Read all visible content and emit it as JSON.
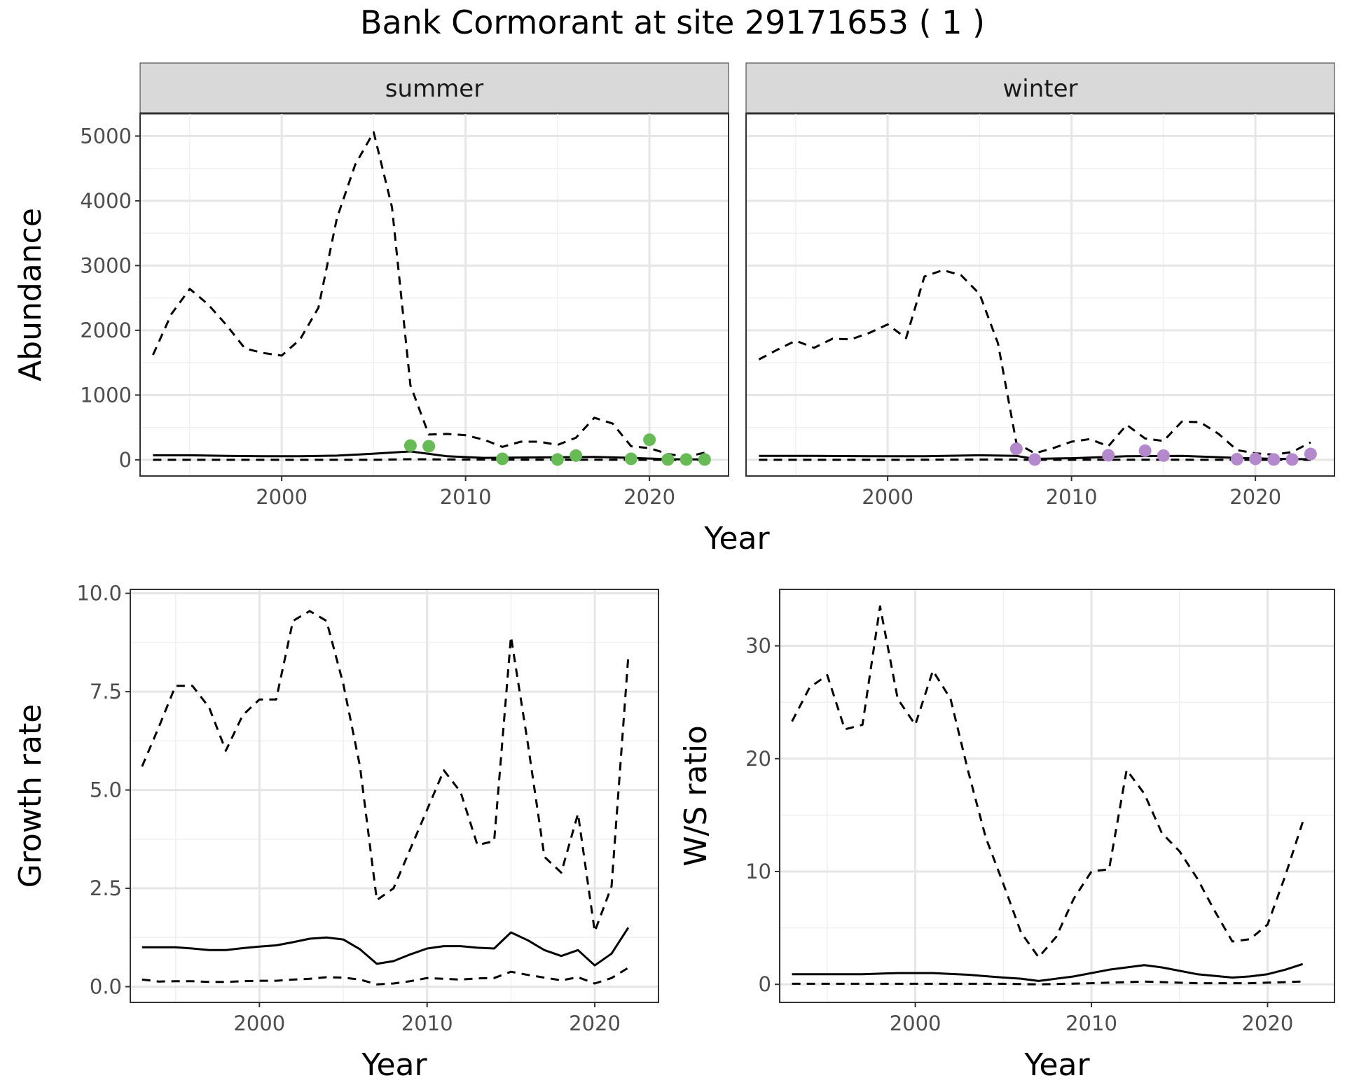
{
  "figure": {
    "title": "Bank Cormorant at site 29171653 ( 1 )"
  },
  "chart_data": [
    {
      "id": "abundance",
      "type": "line",
      "facets": [
        "summer",
        "winter"
      ],
      "xlabel": "Year",
      "ylabel": "Abundance",
      "xlim": [
        1992.3,
        2024.3
      ],
      "ylim": [
        -250,
        5350
      ],
      "xticks": [
        2000,
        2010,
        2020
      ],
      "yticks": [
        0,
        1000,
        2000,
        3000,
        4000,
        5000
      ],
      "grid": true,
      "colors": {
        "summer": "#66BB55",
        "winter": "#B388CC",
        "line": "#000000"
      },
      "panels": [
        {
          "facet": "summer",
          "series": [
            {
              "role": "estimate",
              "style": "solid",
              "x": [
                1993,
                1995,
                1997,
                1999,
                2001,
                2003,
                2005,
                2007,
                2009,
                2011,
                2013,
                2015,
                2017,
                2019,
                2021,
                2023
              ],
              "y": [
                70,
                70,
                60,
                55,
                55,
                65,
                95,
                130,
                55,
                30,
                35,
                40,
                45,
                30,
                10,
                5
              ]
            },
            {
              "role": "upper",
              "style": "dashed",
              "x": [
                1993,
                1994,
                1995,
                1996,
                1997,
                1998,
                1999,
                2000,
                2001,
                2002,
                2003,
                2004,
                2005,
                2006,
                2007,
                2008,
                2009,
                2010,
                2011,
                2012,
                2013,
                2014,
                2015,
                2016,
                2017,
                2018,
                2019,
                2020,
                2021,
                2022,
                2023
              ],
              "y": [
                1620,
                2250,
                2640,
                2400,
                2080,
                1720,
                1650,
                1610,
                1860,
                2350,
                3730,
                4560,
                5060,
                3900,
                1150,
                390,
                400,
                380,
                310,
                200,
                280,
                280,
                230,
                340,
                650,
                560,
                210,
                180,
                90,
                45,
                110
              ]
            },
            {
              "role": "lower",
              "style": "dashed",
              "x": [
                1993,
                1997,
                2001,
                2005,
                2007,
                2009,
                2013,
                2017,
                2021,
                2023
              ],
              "y": [
                0,
                0,
                0,
                0,
                10,
                5,
                2,
                2,
                0,
                0
              ]
            }
          ],
          "points": {
            "x": [
              2007,
              2008,
              2012,
              2015,
              2016,
              2019,
              2020,
              2021,
              2022,
              2023
            ],
            "y": [
              220,
              210,
              15,
              5,
              65,
              15,
              310,
              5,
              5,
              5
            ]
          }
        },
        {
          "facet": "winter",
          "series": [
            {
              "role": "estimate",
              "style": "solid",
              "x": [
                1993,
                1996,
                1999,
                2002,
                2005,
                2007,
                2008,
                2010,
                2013,
                2016,
                2019,
                2021,
                2023
              ],
              "y": [
                60,
                60,
                55,
                55,
                70,
                60,
                15,
                25,
                55,
                60,
                30,
                15,
                10
              ]
            },
            {
              "role": "upper",
              "style": "dashed",
              "x": [
                1993,
                1994,
                1995,
                1996,
                1997,
                1998,
                1999,
                2000,
                2001,
                2002,
                2003,
                2004,
                2005,
                2006,
                2007,
                2008,
                2009,
                2010,
                2011,
                2012,
                2013,
                2014,
                2015,
                2016,
                2017,
                2018,
                2019,
                2020,
                2021,
                2022,
                2023
              ],
              "y": [
                1550,
                1700,
                1840,
                1730,
                1870,
                1860,
                1960,
                2090,
                1880,
                2830,
                2930,
                2850,
                2560,
                1800,
                260,
                100,
                180,
                280,
                320,
                210,
                540,
                330,
                290,
                590,
                580,
                400,
                150,
                100,
                80,
                120,
                270
              ]
            },
            {
              "role": "lower",
              "style": "dashed",
              "x": [
                1993,
                2000,
                2006,
                2008,
                2013,
                2019,
                2023
              ],
              "y": [
                0,
                0,
                5,
                0,
                2,
                0,
                0
              ]
            }
          ],
          "points": {
            "x": [
              2007,
              2008,
              2012,
              2014,
              2015,
              2019,
              2020,
              2021,
              2022,
              2023
            ],
            "y": [
              170,
              5,
              70,
              140,
              65,
              10,
              15,
              5,
              5,
              90
            ]
          }
        }
      ]
    },
    {
      "id": "growth",
      "type": "line",
      "xlabel": "Year",
      "ylabel": "Growth rate",
      "xlim": [
        1992.3,
        2023.8
      ],
      "ylim": [
        -0.4,
        10.1
      ],
      "xticks": [
        2000,
        2010,
        2020
      ],
      "yticks": [
        0.0,
        2.5,
        5.0,
        7.5,
        10.0
      ],
      "ytick_labels": [
        "0.0",
        "2.5",
        "5.0",
        "7.5",
        "10.0"
      ],
      "grid": true,
      "series": [
        {
          "role": "estimate",
          "style": "solid",
          "x": [
            1993,
            1994,
            1995,
            1996,
            1997,
            1998,
            1999,
            2000,
            2001,
            2002,
            2003,
            2004,
            2005,
            2006,
            2007,
            2008,
            2009,
            2010,
            2011,
            2012,
            2013,
            2014,
            2015,
            2016,
            2017,
            2018,
            2019,
            2020,
            2021,
            2022
          ],
          "y": [
            1.0,
            1.0,
            1.0,
            0.97,
            0.93,
            0.93,
            0.98,
            1.02,
            1.05,
            1.13,
            1.22,
            1.25,
            1.2,
            0.95,
            0.58,
            0.65,
            0.82,
            0.97,
            1.03,
            1.03,
            0.99,
            0.97,
            1.38,
            1.18,
            0.93,
            0.78,
            0.93,
            0.54,
            0.84,
            1.5
          ]
        },
        {
          "role": "upper",
          "style": "dashed",
          "x": [
            1993,
            1994,
            1995,
            1996,
            1997,
            1998,
            1999,
            2000,
            2001,
            2002,
            2003,
            2004,
            2005,
            2006,
            2007,
            2008,
            2009,
            2010,
            2011,
            2012,
            2013,
            2014,
            2015,
            2016,
            2017,
            2018,
            2019,
            2020,
            2021,
            2022
          ],
          "y": [
            5.6,
            6.6,
            7.65,
            7.65,
            7.1,
            6.0,
            6.9,
            7.3,
            7.3,
            9.3,
            9.55,
            9.3,
            7.7,
            5.6,
            2.2,
            2.5,
            3.5,
            4.5,
            5.5,
            4.95,
            3.6,
            3.7,
            8.9,
            6.2,
            3.3,
            2.9,
            4.4,
            1.4,
            2.55,
            8.4
          ]
        },
        {
          "role": "lower",
          "style": "dashed",
          "x": [
            1993,
            1994,
            1995,
            1996,
            1997,
            1998,
            1999,
            2000,
            2001,
            2002,
            2003,
            2004,
            2005,
            2006,
            2007,
            2008,
            2009,
            2010,
            2011,
            2012,
            2013,
            2014,
            2015,
            2016,
            2017,
            2018,
            2019,
            2020,
            2021,
            2022
          ],
          "y": [
            0.18,
            0.13,
            0.14,
            0.14,
            0.12,
            0.12,
            0.14,
            0.15,
            0.15,
            0.18,
            0.2,
            0.24,
            0.23,
            0.18,
            0.06,
            0.08,
            0.14,
            0.22,
            0.2,
            0.18,
            0.21,
            0.22,
            0.38,
            0.3,
            0.23,
            0.16,
            0.24,
            0.08,
            0.22,
            0.48
          ]
        }
      ]
    },
    {
      "id": "ws_ratio",
      "type": "line",
      "xlabel": "Year",
      "ylabel": "W/S ratio",
      "xlim": [
        1992.3,
        2023.8
      ],
      "ylim": [
        -1.6,
        35.0
      ],
      "xticks": [
        2000,
        2010,
        2020
      ],
      "yticks": [
        0,
        10,
        20,
        30
      ],
      "grid": true,
      "series": [
        {
          "role": "estimate",
          "style": "solid",
          "x": [
            1993,
            1995,
            1997,
            1999,
            2001,
            2003,
            2005,
            2006,
            2007,
            2009,
            2011,
            2013,
            2014,
            2016,
            2018,
            2019,
            2020,
            2021,
            2022
          ],
          "y": [
            0.9,
            0.9,
            0.9,
            1.0,
            1.0,
            0.85,
            0.6,
            0.5,
            0.3,
            0.7,
            1.3,
            1.7,
            1.5,
            0.9,
            0.6,
            0.7,
            0.9,
            1.3,
            1.8
          ]
        },
        {
          "role": "upper",
          "style": "dashed",
          "x": [
            1993,
            1994,
            1995,
            1996,
            1997,
            1998,
            1999,
            2000,
            2001,
            2002,
            2003,
            2004,
            2005,
            2006,
            2007,
            2008,
            2009,
            2010,
            2011,
            2012,
            2013,
            2014,
            2015,
            2016,
            2017,
            2018,
            2019,
            2020,
            2021,
            2022
          ],
          "y": [
            23.3,
            26.3,
            27.4,
            22.6,
            23.0,
            33.5,
            25.3,
            23.0,
            27.8,
            25.3,
            18.9,
            13.0,
            8.9,
            4.6,
            2.4,
            4.2,
            7.6,
            10.0,
            10.2,
            19.0,
            16.9,
            13.4,
            11.8,
            9.4,
            6.5,
            3.8,
            4.0,
            5.3,
            9.6,
            14.4
          ]
        },
        {
          "role": "lower",
          "style": "dashed",
          "x": [
            1993,
            2000,
            2005,
            2007,
            2010,
            2013,
            2016,
            2019,
            2022
          ],
          "y": [
            0.05,
            0.05,
            0.05,
            0.0,
            0.1,
            0.25,
            0.1,
            0.1,
            0.25
          ]
        }
      ]
    }
  ]
}
